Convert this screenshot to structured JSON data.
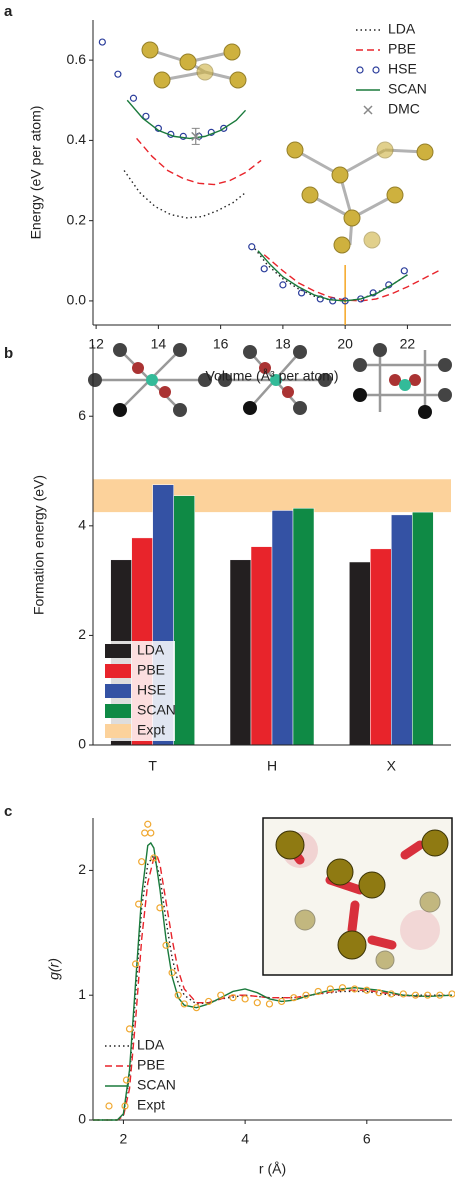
{
  "chart_data": [
    {
      "type": "line",
      "panel_label": "a",
      "x_label": "Volume (Å³ per atom)",
      "y_label": "Energy (eV per atom)",
      "xlim": [
        11.9,
        23.4
      ],
      "xticks": [
        12,
        14,
        16,
        18,
        20,
        22
      ],
      "ylim": [
        -0.06,
        0.7
      ],
      "yticks": [
        {
          "value": 0,
          "label": "0.0"
        },
        0.2,
        0.4,
        0.6
      ],
      "legend": "upper right",
      "reference_lines": [
        {
          "x": 20,
          "color": "#f5a623"
        }
      ],
      "series": [
        {
          "name": "LDA",
          "color": "#222222",
          "style": "dotted",
          "x": [
            12.9,
            13.4,
            13.9,
            14.4,
            14.9,
            15.4,
            15.9,
            16.4,
            16.8,
            null,
            17.1,
            17.5,
            18.0,
            18.5,
            19.0,
            19.5,
            20.0,
            20.5,
            21.0,
            21.5,
            22.0
          ],
          "values": [
            0.325,
            0.27,
            0.235,
            0.215,
            0.207,
            0.21,
            0.225,
            0.245,
            0.27,
            null,
            0.13,
            0.09,
            0.055,
            0.03,
            0.012,
            0.003,
            0.0,
            0.005,
            0.02,
            0.04,
            0.065
          ]
        },
        {
          "name": "PBE",
          "color": "#e8242b",
          "style": "dashed",
          "x": [
            13.3,
            13.8,
            14.3,
            14.8,
            15.3,
            15.8,
            16.3,
            16.8,
            17.3,
            null,
            17.4,
            18.0,
            18.5,
            19.0,
            19.5,
            20.0,
            20.5,
            21.0,
            21.5,
            22.0,
            22.5,
            23.0
          ],
          "values": [
            0.405,
            0.36,
            0.325,
            0.305,
            0.293,
            0.29,
            0.3,
            0.32,
            0.35,
            null,
            0.115,
            0.075,
            0.045,
            0.025,
            0.01,
            0.002,
            0.0,
            0.005,
            0.018,
            0.035,
            0.055,
            0.075
          ]
        },
        {
          "name": "HSE",
          "color": "#2b3d9b",
          "style": "circles",
          "x": [
            12.2,
            12.7,
            13.2,
            13.6,
            14.0,
            14.4,
            14.8,
            15.3,
            15.7,
            16.1,
            17.0,
            17.4,
            18.0,
            18.6,
            19.2,
            19.6,
            20.0,
            20.5,
            20.9,
            21.4,
            21.9
          ],
          "values": [
            0.645,
            0.565,
            0.505,
            0.46,
            0.43,
            0.415,
            0.41,
            0.41,
            0.42,
            0.43,
            0.135,
            0.08,
            0.04,
            0.02,
            0.005,
            0.0,
            0.0,
            0.005,
            0.02,
            0.04,
            0.075
          ]
        },
        {
          "name": "SCAN",
          "color": "#1a7a3c",
          "style": "solid",
          "x": [
            13.0,
            13.5,
            14.0,
            14.5,
            15.0,
            15.5,
            16.0,
            16.5,
            16.8,
            null,
            17.2,
            17.6,
            18.0,
            18.5,
            19.0,
            19.5,
            20.0,
            20.5,
            21.0,
            21.5,
            22.0
          ],
          "values": [
            0.5,
            0.455,
            0.425,
            0.41,
            0.405,
            0.41,
            0.425,
            0.45,
            0.475,
            null,
            0.125,
            0.09,
            0.06,
            0.035,
            0.015,
            0.003,
            0.0,
            0.005,
            0.018,
            0.04,
            0.065
          ]
        },
        {
          "name": "DMC",
          "color": "#888888",
          "style": "cross",
          "x": [
            15.2
          ],
          "values": [
            0.41
          ],
          "errors": [
            0.02
          ]
        }
      ]
    },
    {
      "type": "bar",
      "panel_label": "b",
      "y_label": "Formation energy (eV)",
      "categories": [
        "T",
        "H",
        "X"
      ],
      "ylim": [
        0,
        7.3
      ],
      "yticks": [
        0,
        2,
        4,
        6
      ],
      "legend": "lower left",
      "series": [
        {
          "name": "LDA",
          "color": "#231f20",
          "values": [
            3.38,
            3.38,
            3.34
          ]
        },
        {
          "name": "PBE",
          "color": "#e8242b",
          "values": [
            3.78,
            3.62,
            3.58
          ]
        },
        {
          "name": "HSE",
          "color": "#3452a4",
          "values": [
            4.75,
            4.28,
            4.2
          ]
        },
        {
          "name": "SCAN",
          "color": "#0f8a45",
          "values": [
            4.55,
            4.32,
            4.25
          ]
        }
      ],
      "bands": [
        {
          "name": "Expt",
          "color": "#fcd29b",
          "range": [
            4.25,
            4.85
          ]
        }
      ]
    },
    {
      "type": "line",
      "panel_label": "c",
      "x_label": "r (Å)",
      "y_label": "g(r)",
      "xlim": [
        1.5,
        7.4
      ],
      "xticks": [
        2,
        4,
        6
      ],
      "ylim": [
        0,
        2.42
      ],
      "yticks": [
        0,
        1,
        2
      ],
      "legend": "lower left",
      "series": [
        {
          "name": "LDA",
          "color": "#222222",
          "style": "dotted",
          "x": [
            1.5,
            1.9,
            2.0,
            2.1,
            2.2,
            2.3,
            2.4,
            2.5,
            2.6,
            2.7,
            2.8,
            2.9,
            3.0,
            3.2,
            3.4,
            3.6,
            4.0,
            4.4,
            4.8,
            5.2,
            5.6,
            6.0,
            6.4,
            7.4
          ],
          "values": [
            0,
            0,
            0.04,
            0.35,
            1.0,
            1.7,
            2.05,
            2.12,
            1.95,
            1.6,
            1.3,
            1.1,
            1.0,
            0.93,
            0.94,
            0.97,
            1.0,
            0.98,
            0.98,
            1.01,
            1.03,
            1.03,
            1.0,
            1.0
          ]
        },
        {
          "name": "PBE",
          "color": "#e8242b",
          "style": "dashed",
          "x": [
            1.5,
            1.9,
            2.0,
            2.1,
            2.2,
            2.3,
            2.4,
            2.5,
            2.55,
            2.6,
            2.7,
            2.8,
            2.9,
            3.0,
            3.2,
            3.4,
            3.6,
            3.8,
            4.0,
            4.4,
            4.8,
            5.2,
            5.6,
            6.0,
            6.4,
            6.8,
            7.4
          ],
          "values": [
            0,
            0,
            0.03,
            0.25,
            0.8,
            1.45,
            1.9,
            2.1,
            2.12,
            2.05,
            1.75,
            1.45,
            1.2,
            1.05,
            0.94,
            0.94,
            0.97,
            1.0,
            1.0,
            0.98,
            0.98,
            1.01,
            1.04,
            1.04,
            1.01,
            0.99,
            1.0
          ]
        },
        {
          "name": "SCAN",
          "color": "#1a7a3c",
          "style": "solid",
          "x": [
            1.5,
            1.9,
            2.0,
            2.1,
            2.2,
            2.3,
            2.4,
            2.45,
            2.5,
            2.6,
            2.7,
            2.8,
            2.9,
            3.0,
            3.2,
            3.4,
            3.6,
            3.8,
            4.0,
            4.2,
            4.4,
            4.6,
            4.8,
            5.0,
            5.4,
            5.8,
            6.2,
            6.6,
            7.0,
            7.4
          ],
          "values": [
            0,
            0,
            0.05,
            0.4,
            1.1,
            1.8,
            2.2,
            2.22,
            2.18,
            1.85,
            1.45,
            1.15,
            0.98,
            0.92,
            0.9,
            0.93,
            0.98,
            1.03,
            1.05,
            1.02,
            0.97,
            0.95,
            0.96,
            0.99,
            1.04,
            1.06,
            1.04,
            1.0,
            0.99,
            1.0
          ]
        },
        {
          "name": "Expt",
          "color": "#f0a830",
          "style": "circles",
          "x": [
            2.05,
            2.1,
            2.2,
            2.25,
            2.3,
            2.35,
            2.4,
            2.45,
            2.5,
            2.6,
            2.7,
            2.8,
            2.9,
            3.0,
            3.2,
            3.4,
            3.6,
            3.8,
            4.0,
            4.2,
            4.4,
            4.6,
            4.8,
            5.0,
            5.2,
            5.4,
            5.6,
            5.8,
            6.0,
            6.2,
            6.4,
            6.6,
            6.8,
            7.0,
            7.2,
            7.4
          ],
          "values": [
            0.32,
            0.73,
            1.25,
            1.73,
            2.07,
            2.3,
            2.37,
            2.3,
            2.1,
            1.7,
            1.4,
            1.18,
            1.0,
            0.93,
            0.9,
            0.95,
            1.0,
            0.98,
            0.97,
            0.94,
            0.93,
            0.95,
            0.98,
            1.0,
            1.03,
            1.05,
            1.06,
            1.05,
            1.04,
            1.02,
            1.01,
            1.01,
            1.0,
            1.0,
            1.0,
            1.01
          ]
        }
      ]
    }
  ]
}
